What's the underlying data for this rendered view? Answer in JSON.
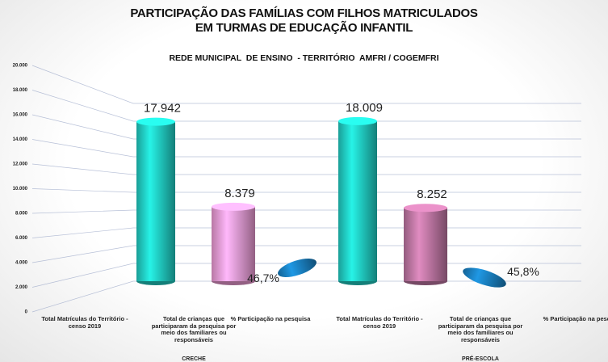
{
  "chart_data": {
    "type": "bar",
    "title": "PARTICIPAÇÃO DAS FAMÍLIAS COM FILHOS MATRICULADOS\nEM TURMAS DE EDUCAÇÃO INFANTIL",
    "subtitle": "REDE MUNICIPAL  DE ENSINO  - TERRITÓRIO  AMFRI / COGEMFRI",
    "categories": [
      "Total Matrículas do Território - censo 2019",
      "Total de crianças que participaram da pesquisa por meio dos familiares ou responsáveis",
      "% Participação na pesquisa",
      "Total Matrículas do Território - censo 2019",
      "Total de crianças que participaram da pesquisa por meio dos familiares ou responsáveis",
      "% Participação na pesquisa"
    ],
    "group_labels": [
      "CRECHE",
      "PRÉ-ESCOLA"
    ],
    "values": [
      17942,
      8379,
      46.7,
      18009,
      8252,
      45.8
    ],
    "value_labels": [
      "17.942",
      "8.379",
      "46,7%",
      "18.009",
      "8.252",
      "45,8%"
    ],
    "colors": [
      "#22d3c9",
      "#f5a0da",
      "#1b84c6",
      "#22d3c9",
      "#c47aa8",
      "#1b84c6"
    ],
    "ylim": [
      0,
      20000
    ],
    "yticks": [
      0,
      {
        "value": 2000,
        "label": "2.000"
      },
      {
        "value": 4000,
        "label": "4.000"
      },
      {
        "value": 6000,
        "label": "6.000"
      },
      {
        "value": 8000,
        "label": "8.000"
      },
      {
        "value": 10000,
        "label": "10.000"
      },
      {
        "value": 12000,
        "label": "12.000"
      },
      {
        "value": 14000,
        "label": "14.000"
      },
      {
        "value": 16000,
        "label": "16.000"
      },
      {
        "value": 18000,
        "label": "18.000"
      },
      {
        "value": 20000,
        "label": "20.000"
      }
    ],
    "grid": true
  }
}
